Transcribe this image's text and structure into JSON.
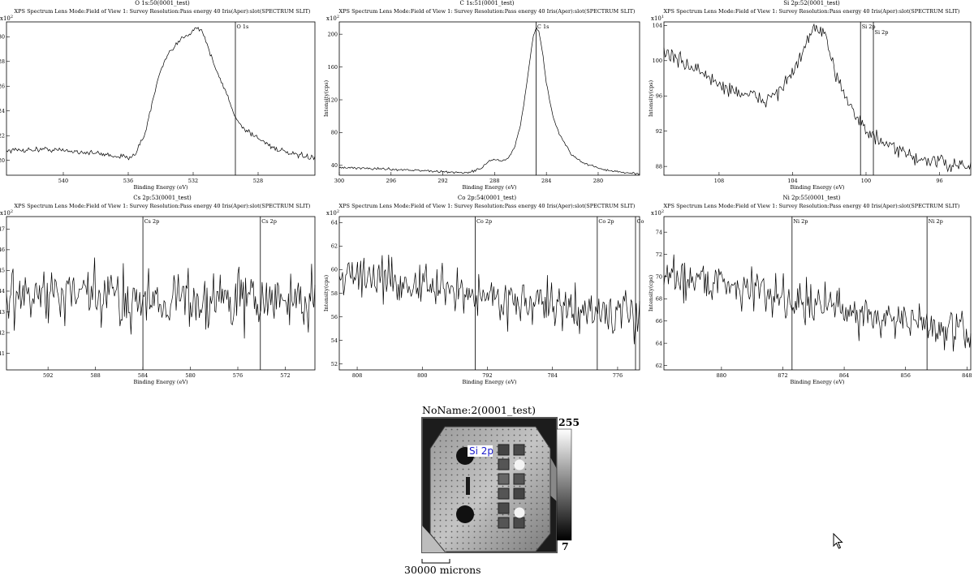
{
  "common_header": "XPS    Spectrum    Lens Mode:Field of View 1: Survey    Resolution:Pass energy 40    Iris(Aper):slot(SPECTRUM SLIT)",
  "x_label": "Binding Energy (eV)",
  "y_label": "Intensity(cps)",
  "chart_data": [
    {
      "type": "line",
      "title": "O 1s:50(0001_test)",
      "exponent": "x10",
      "exp_power": "2",
      "xlim": [
        543.5,
        524.5
      ],
      "ylim": [
        18.8,
        31.2
      ],
      "xticks": [
        540,
        536,
        532,
        528
      ],
      "yticks": [
        {
          "v": 20,
          "label": "20"
        },
        {
          "v": 22,
          "label": "22"
        },
        {
          "v": 24,
          "label": "24"
        },
        {
          "v": 26,
          "label": "26"
        },
        {
          "v": 28,
          "label": "28"
        },
        {
          "v": 30,
          "label": "30"
        }
      ],
      "markers": [
        {
          "x": 529.4,
          "label": "O 1s"
        }
      ],
      "noise": 0.15,
      "x": [
        543.5,
        541,
        539,
        537.5,
        536.5,
        536,
        535.5,
        535,
        534.5,
        534,
        533.5,
        533,
        532.6,
        532.2,
        531.8,
        531.4,
        531,
        530.5,
        530,
        529.5,
        529,
        528,
        527,
        526,
        524.5
      ],
      "y": [
        20.8,
        20.9,
        20.7,
        20.5,
        20.3,
        20.2,
        20.7,
        22.0,
        24.8,
        27.3,
        28.6,
        29.4,
        30.0,
        30.3,
        30.8,
        30.4,
        28.8,
        27.0,
        25.6,
        23.8,
        22.7,
        21.8,
        21.0,
        20.5,
        20.2
      ]
    },
    {
      "type": "line",
      "title": "C 1s:51(0001_test)",
      "exponent": "x10",
      "exp_power": "2",
      "xlim": [
        300,
        276.8
      ],
      "ylim": [
        28,
        215
      ],
      "xticks": [
        300,
        296,
        292,
        288,
        284,
        280
      ],
      "yticks": [
        {
          "v": 40,
          "label": "40"
        },
        {
          "v": 80,
          "label": "80"
        },
        {
          "v": 120,
          "label": "120"
        },
        {
          "v": 160,
          "label": "160"
        },
        {
          "v": 200,
          "label": "200"
        }
      ],
      "markers": [
        {
          "x": 284.8,
          "label": "C 1s"
        }
      ],
      "noise": 1.0,
      "x": [
        300,
        297,
        294,
        292,
        290,
        289,
        288.4,
        288,
        287.5,
        287,
        286.5,
        286,
        285.6,
        285.2,
        285,
        284.8,
        284.6,
        284.3,
        284,
        283.5,
        283,
        282.5,
        282,
        281,
        280,
        279,
        278,
        276.8
      ],
      "y": [
        37,
        36,
        34,
        32,
        31,
        37,
        46,
        47,
        45,
        48,
        60,
        88,
        130,
        178,
        198,
        208,
        205,
        178,
        140,
        100,
        78,
        65,
        52,
        42,
        37,
        33,
        31,
        30
      ]
    },
    {
      "type": "line",
      "title": "Si 2p:52(0001_test)",
      "exponent": "x10",
      "exp_power": "1",
      "xlim": [
        111,
        94.3
      ],
      "ylim": [
        87,
        104.4
      ],
      "xticks": [
        108,
        104,
        100,
        96
      ],
      "yticks": [
        {
          "v": 88,
          "label": "88"
        },
        {
          "v": 92,
          "label": "92"
        },
        {
          "v": 96,
          "label": "96"
        },
        {
          "v": 100,
          "label": "100"
        },
        {
          "v": 104,
          "label": "104"
        }
      ],
      "markers": [
        {
          "x": 100.3,
          "label": "Si 2p"
        },
        {
          "x": 99.6,
          "label": "Si 2p"
        }
      ],
      "noise": 0.6,
      "x": [
        111,
        110,
        109,
        108,
        107,
        106,
        105.5,
        105,
        104.5,
        104,
        103.5,
        103.2,
        102.8,
        102.3,
        101.8,
        101.2,
        100.6,
        100,
        99,
        98,
        97,
        96,
        95,
        94.3
      ],
      "y": [
        101,
        99.8,
        98.8,
        97.2,
        96.5,
        95.8,
        95.5,
        96.2,
        97.2,
        98.5,
        100.5,
        102.5,
        103.6,
        103.0,
        99.5,
        96.5,
        94.0,
        92.0,
        90.5,
        89.5,
        88.8,
        88.5,
        88.0,
        87.8
      ]
    },
    {
      "type": "line",
      "title": "Cs 2p:53(0001_test)",
      "exponent": "x10",
      "exp_power": "2",
      "xlim": [
        595.5,
        569.5
      ],
      "ylim": [
        40.2,
        47.6
      ],
      "xticks": [
        592,
        588,
        584,
        580,
        576,
        572
      ],
      "yticks": [
        {
          "v": 41,
          "label": "41"
        },
        {
          "v": 42,
          "label": "42"
        },
        {
          "v": 43,
          "label": "43"
        },
        {
          "v": 44,
          "label": "44"
        },
        {
          "v": 45,
          "label": "45"
        },
        {
          "v": 46,
          "label": "46"
        },
        {
          "v": 47,
          "label": "47"
        }
      ],
      "markers": [
        {
          "x": 584,
          "label": "Cs 2p"
        },
        {
          "x": 574.1,
          "label": "Cs 2p"
        }
      ],
      "noise": 1.05,
      "x": [
        595.5,
        569.5
      ],
      "y": [
        43.8,
        43.5
      ]
    },
    {
      "type": "line",
      "title": "Co 2p:54(0001_test)",
      "exponent": "x10",
      "exp_power": "2",
      "xlim": [
        810.2,
        773.3
      ],
      "ylim": [
        51.5,
        64.5
      ],
      "xticks": [
        808,
        800,
        792,
        784,
        776
      ],
      "yticks": [
        {
          "v": 52,
          "label": "52"
        },
        {
          "v": 54,
          "label": "54"
        },
        {
          "v": 56,
          "label": "56"
        },
        {
          "v": 58,
          "label": "58"
        },
        {
          "v": 60,
          "label": "60"
        },
        {
          "v": 62,
          "label": "62"
        },
        {
          "v": 64,
          "label": "64"
        }
      ],
      "markers": [
        {
          "x": 793.5,
          "label": "Co 2p"
        },
        {
          "x": 778.5,
          "label": "Co 2p"
        },
        {
          "x": 773.8,
          "label": "Co"
        }
      ],
      "noise": 1.3,
      "x": [
        810.2,
        800,
        790,
        780,
        773.3
      ],
      "y": [
        59.8,
        58.6,
        57.5,
        56.5,
        56.0
      ]
    },
    {
      "type": "line",
      "title": "Ni 2p:55(0001_test)",
      "exponent": "x10",
      "exp_power": "2",
      "xlim": [
        887.5,
        847.5
      ],
      "ylim": [
        61.6,
        75.4
      ],
      "xticks": [
        880,
        872,
        864,
        856,
        848
      ],
      "yticks": [
        {
          "v": 62,
          "label": "62"
        },
        {
          "v": 64,
          "label": "64"
        },
        {
          "v": 66,
          "label": "66"
        },
        {
          "v": 68,
          "label": "68"
        },
        {
          "v": 70,
          "label": "70"
        },
        {
          "v": 72,
          "label": "72"
        },
        {
          "v": 74,
          "label": "74"
        }
      ],
      "markers": [
        {
          "x": 870.8,
          "label": "Ni 2p"
        },
        {
          "x": 853.2,
          "label": "Ni 2p"
        }
      ],
      "noise": 1.35,
      "x": [
        887.5,
        880,
        872,
        864,
        856,
        847.5
      ],
      "y": [
        70.2,
        69.5,
        68.2,
        67.0,
        66.0,
        64.8
      ]
    }
  ],
  "image": {
    "title": "NoName:2(0001_test)",
    "scale_max": "255",
    "scale_min": "7",
    "overlay_label": "Si 2p",
    "scale_bar": "30000 microns",
    "overlay_color": "#1a1acc"
  }
}
